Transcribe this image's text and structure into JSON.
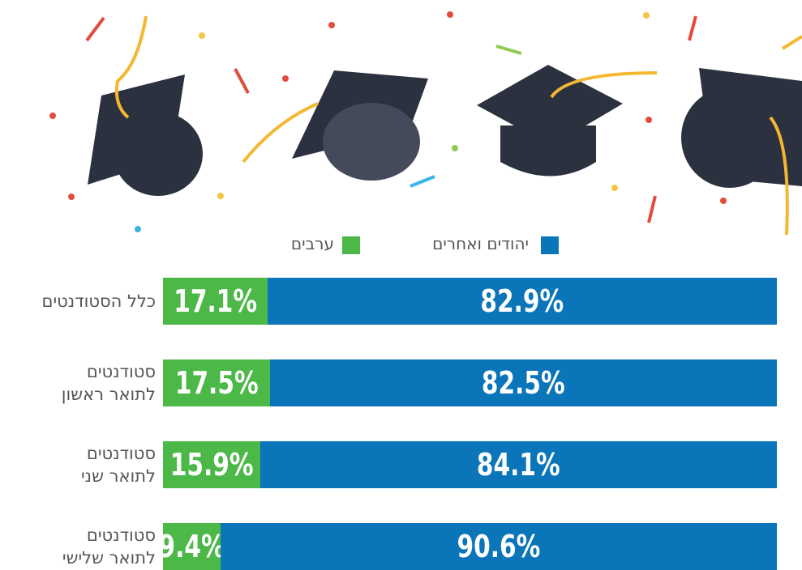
{
  "chart_data": {
    "type": "stacked-bar-horizontal",
    "categories": [
      "כלל הסטודנטים",
      "סטודנטים\nלתואר ראשון",
      "סטודנטים\nלתואר שני",
      "סטודנטים\nלתואר שלישי"
    ],
    "series": [
      {
        "name": "ערבים",
        "color": "#4cb848",
        "values": [
          17.1,
          17.5,
          15.9,
          9.4
        ],
        "value_labels": [
          "17.1%",
          "17.5%",
          "15.9%",
          "9.4%"
        ]
      },
      {
        "name": "יהודים ואחרים",
        "color": "#0a75b8",
        "values": [
          82.9,
          82.5,
          84.1,
          90.6
        ],
        "value_labels": [
          "82.9%",
          "82.5%",
          "84.1%",
          "90.6%"
        ]
      }
    ],
    "xlim": [
      0,
      100
    ]
  }
}
